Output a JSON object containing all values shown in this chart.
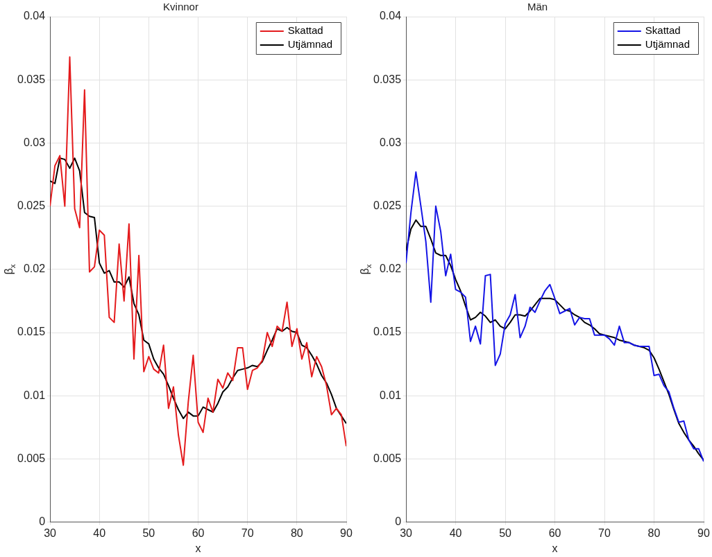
{
  "chart_data": [
    {
      "type": "line",
      "title": "Kvinnor",
      "xlabel": "x",
      "ylabel": "β$_{x}$",
      "x": [
        30,
        31,
        32,
        33,
        34,
        35,
        36,
        37,
        38,
        39,
        40,
        41,
        42,
        43,
        44,
        45,
        46,
        47,
        48,
        49,
        50,
        51,
        52,
        53,
        54,
        55,
        56,
        57,
        58,
        59,
        60,
        61,
        62,
        63,
        64,
        65,
        66,
        67,
        68,
        69,
        70,
        71,
        72,
        73,
        74,
        75,
        76,
        77,
        78,
        79,
        80,
        81,
        82,
        83,
        84,
        85,
        86,
        87,
        88,
        89,
        90
      ],
      "series": [
        {
          "name": "Skattad",
          "color": "#e41a1c",
          "values": [
            0.025,
            0.0282,
            0.029,
            0.025,
            0.0368,
            0.0248,
            0.0233,
            0.0342,
            0.0198,
            0.0202,
            0.0231,
            0.0227,
            0.0162,
            0.0158,
            0.022,
            0.0175,
            0.0236,
            0.0129,
            0.0211,
            0.0119,
            0.0131,
            0.0121,
            0.0118,
            0.014,
            0.009,
            0.0107,
            0.0069,
            0.0045,
            0.0095,
            0.0132,
            0.0079,
            0.0071,
            0.0098,
            0.0087,
            0.0113,
            0.0106,
            0.0118,
            0.0112,
            0.0138,
            0.0138,
            0.0105,
            0.012,
            0.0122,
            0.0128,
            0.015,
            0.0139,
            0.0155,
            0.0151,
            0.0174,
            0.0139,
            0.0153,
            0.0129,
            0.0142,
            0.0115,
            0.0131,
            0.0123,
            0.0108,
            0.0085,
            0.009,
            0.0085,
            0.006
          ]
        },
        {
          "name": "Utjämnad",
          "color": "#000000",
          "values": [
            0.027,
            0.0268,
            0.0288,
            0.0287,
            0.028,
            0.0288,
            0.0278,
            0.0245,
            0.0242,
            0.0241,
            0.0205,
            0.0197,
            0.0199,
            0.019,
            0.019,
            0.0186,
            0.0194,
            0.0173,
            0.0164,
            0.0144,
            0.0141,
            0.0129,
            0.0122,
            0.0117,
            0.0108,
            0.0098,
            0.0089,
            0.0082,
            0.0087,
            0.0084,
            0.0084,
            0.0091,
            0.0089,
            0.0087,
            0.0094,
            0.0103,
            0.0107,
            0.0114,
            0.012,
            0.0121,
            0.0122,
            0.0124,
            0.0123,
            0.0127,
            0.0136,
            0.0144,
            0.0153,
            0.0151,
            0.0154,
            0.0151,
            0.015,
            0.014,
            0.0138,
            0.0132,
            0.0125,
            0.0116,
            0.011,
            0.0101,
            0.009,
            0.0084,
            0.0078
          ]
        }
      ],
      "xlim": [
        30,
        90
      ],
      "xticks": [
        30,
        40,
        50,
        60,
        70,
        80,
        90
      ],
      "ylim": [
        0,
        0.04
      ],
      "yticks": [
        0,
        0.005,
        0.01,
        0.015,
        0.02,
        0.025,
        0.03,
        0.035,
        0.04
      ],
      "grid": true,
      "legend": "top right",
      "marker": "none",
      "line_style": "solid"
    },
    {
      "type": "line",
      "title": "Män",
      "xlabel": "x",
      "ylabel": "β$_{x}$",
      "x": [
        30,
        31,
        32,
        33,
        34,
        35,
        36,
        37,
        38,
        39,
        40,
        41,
        42,
        43,
        44,
        45,
        46,
        47,
        48,
        49,
        50,
        51,
        52,
        53,
        54,
        55,
        56,
        57,
        58,
        59,
        60,
        61,
        62,
        63,
        64,
        65,
        66,
        67,
        68,
        69,
        70,
        71,
        72,
        73,
        74,
        75,
        76,
        77,
        78,
        79,
        80,
        81,
        82,
        83,
        84,
        85,
        86,
        87,
        88,
        89,
        90
      ],
      "series": [
        {
          "name": "Skattad",
          "color": "#1414e6",
          "values": [
            0.0205,
            0.0245,
            0.0277,
            0.025,
            0.0222,
            0.0174,
            0.025,
            0.023,
            0.0195,
            0.0212,
            0.0184,
            0.0182,
            0.0178,
            0.0143,
            0.0155,
            0.0141,
            0.0195,
            0.0196,
            0.0124,
            0.0133,
            0.0157,
            0.0164,
            0.018,
            0.0146,
            0.0155,
            0.017,
            0.0166,
            0.0175,
            0.0183,
            0.0188,
            0.0177,
            0.0165,
            0.0167,
            0.0169,
            0.0156,
            0.0162,
            0.0161,
            0.0161,
            0.0148,
            0.0148,
            0.0148,
            0.0145,
            0.014,
            0.0155,
            0.0142,
            0.0142,
            0.014,
            0.0139,
            0.0139,
            0.0139,
            0.0116,
            0.0117,
            0.0108,
            0.0103,
            0.009,
            0.0079,
            0.008,
            0.0065,
            0.0058,
            0.0058,
            0.0048
          ]
        },
        {
          "name": "Utjämnad",
          "color": "#000000",
          "values": [
            0.0215,
            0.0232,
            0.0239,
            0.0234,
            0.0234,
            0.0224,
            0.0213,
            0.0211,
            0.0211,
            0.0203,
            0.0192,
            0.0183,
            0.0171,
            0.016,
            0.0162,
            0.0166,
            0.0163,
            0.0158,
            0.016,
            0.0155,
            0.0153,
            0.0158,
            0.0164,
            0.0164,
            0.0163,
            0.0167,
            0.0172,
            0.0177,
            0.0177,
            0.0177,
            0.0176,
            0.0172,
            0.0168,
            0.0167,
            0.0164,
            0.0162,
            0.0158,
            0.0156,
            0.0153,
            0.0149,
            0.0148,
            0.0147,
            0.0146,
            0.0144,
            0.0143,
            0.0142,
            0.014,
            0.0139,
            0.0138,
            0.0136,
            0.013,
            0.0121,
            0.0111,
            0.0101,
            0.0089,
            0.0078,
            0.0071,
            0.0065,
            0.006,
            0.0054,
            0.0049
          ]
        }
      ],
      "xlim": [
        30,
        90
      ],
      "xticks": [
        30,
        40,
        50,
        60,
        70,
        80,
        90
      ],
      "ylim": [
        0,
        0.04
      ],
      "yticks": [
        0,
        0.005,
        0.01,
        0.015,
        0.02,
        0.025,
        0.03,
        0.035,
        0.04
      ],
      "grid": true,
      "legend": "top right",
      "marker": "none",
      "line_style": "solid"
    }
  ]
}
